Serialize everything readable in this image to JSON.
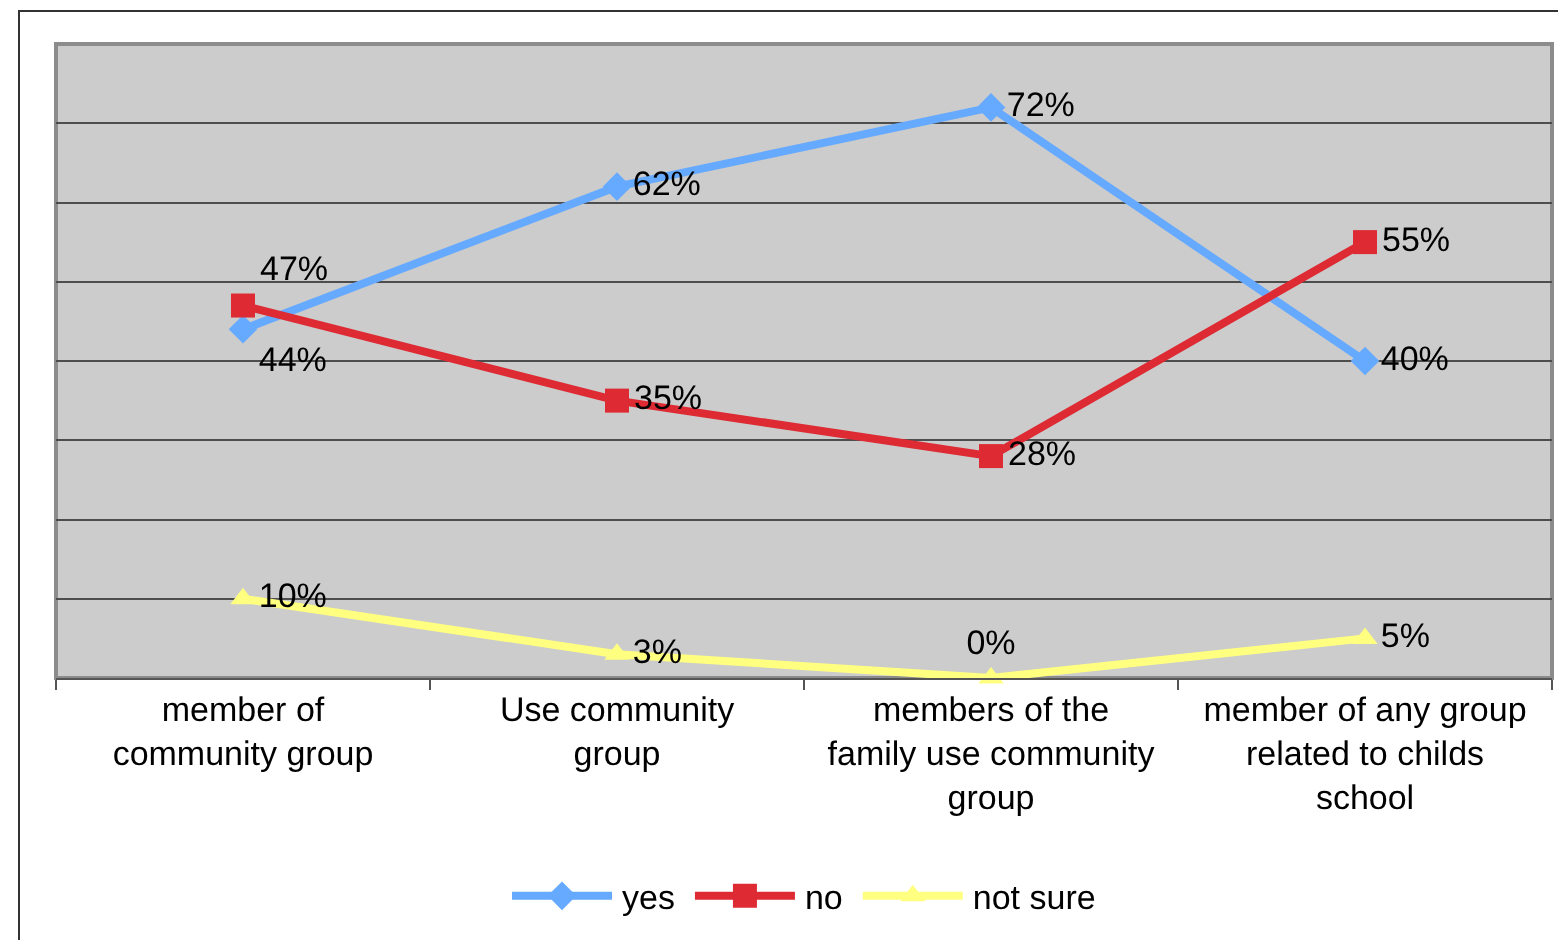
{
  "chart_data": {
    "type": "line",
    "categories": [
      "member of\ncommunity group",
      "Use community\ngroup",
      "members of the\nfamily use community\ngroup",
      "member of any group\nrelated to childs\nschool"
    ],
    "series": [
      {
        "name": "yes",
        "color": "#66aaff",
        "marker": "diamond",
        "values": [
          44,
          62,
          72,
          40
        ],
        "value_labels": [
          "44%",
          "62%",
          "72%",
          "40%"
        ]
      },
      {
        "name": "no",
        "color": "#dd2a33",
        "marker": "square",
        "values": [
          47,
          35,
          28,
          55
        ],
        "value_labels": [
          "47%",
          "35%",
          "28%",
          "55%"
        ]
      },
      {
        "name": "not sure",
        "color": "#ffff80",
        "marker": "triangle",
        "values": [
          10,
          3,
          0,
          5
        ],
        "value_labels": [
          "10%",
          "3%",
          "0%",
          "5%"
        ]
      }
    ],
    "ylim": [
      0,
      80
    ],
    "yticks": [
      {
        "value": 0,
        "label": null
      },
      {
        "value": 10,
        "label": null
      },
      {
        "value": 20,
        "label": null
      },
      {
        "value": 30,
        "label": null
      },
      {
        "value": 40,
        "label": null
      },
      {
        "value": 50,
        "label": null
      },
      {
        "value": 60,
        "label": null
      },
      {
        "value": 70,
        "label": null
      },
      {
        "value": 80,
        "label": null
      }
    ],
    "grid": "y",
    "legend": "bottom",
    "tick_labels": "x",
    "line_style": "solid"
  }
}
